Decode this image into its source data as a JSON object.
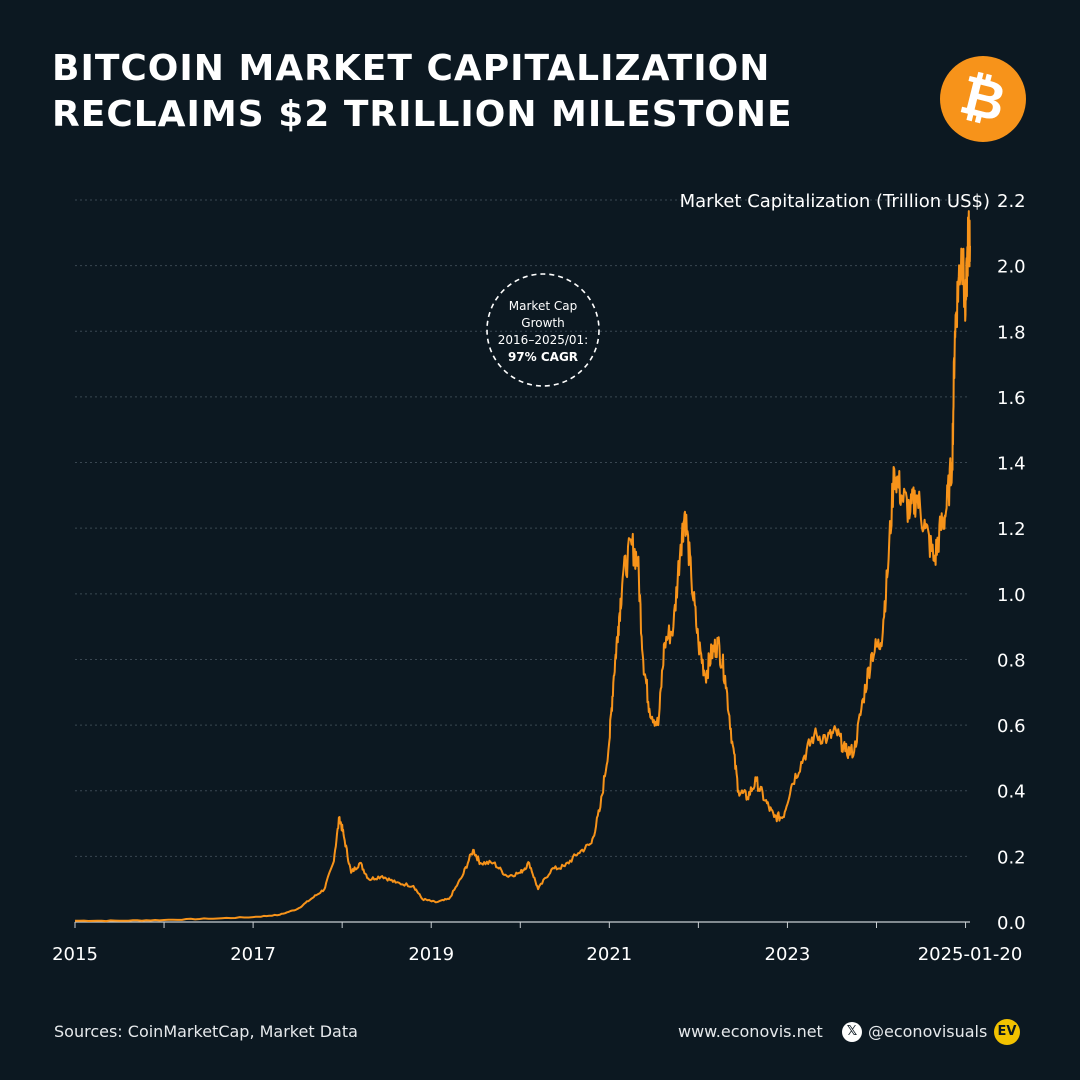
{
  "header": {
    "title_line1": "BITCOIN MARKET CAPITALIZATION",
    "title_line2": "RECLAIMS $2 TRILLION MILESTONE",
    "logo_symbol": "₿",
    "logo_icon": "bitcoin-logo-icon"
  },
  "annotation": {
    "line1": "Market Cap",
    "line2": "Growth",
    "line3": "2016–2025/01:",
    "line4": "97% CAGR"
  },
  "footer": {
    "sources": "Sources: CoinMarketCap, Market Data",
    "website": "www.econovis.net",
    "x_icon": "x-logo-icon",
    "x_glyph": "𝕏",
    "handle": "@econovisuals",
    "brand_icon": "econovis-logo-icon",
    "brand_text": "EV"
  },
  "colors": {
    "background": "#0c1821",
    "line": "#f7931a",
    "grid": "#3a4752",
    "text": "#ffffff",
    "muted": "#c8cdd2"
  },
  "chart_data": {
    "type": "line",
    "title": "BITCOIN MARKET CAPITALIZATION RECLAIMS $2 TRILLION MILESTONE",
    "ylabel": "Market Capitalization (Trillion US$)",
    "xlabel": "",
    "ylim": [
      0,
      2.2
    ],
    "xlim": [
      2015.0,
      2025.05
    ],
    "yticks": [
      "0.0",
      "0.2",
      "0.4",
      "0.6",
      "0.8",
      "1.0",
      "1.2",
      "1.4",
      "1.6",
      "1.8",
      "2.0",
      "2.2"
    ],
    "xticks": [
      {
        "x": 2015.0,
        "label": "2015"
      },
      {
        "x": 2017.0,
        "label": "2017"
      },
      {
        "x": 2019.0,
        "label": "2019"
      },
      {
        "x": 2021.0,
        "label": "2021"
      },
      {
        "x": 2023.0,
        "label": "2023"
      },
      {
        "x": 2025.05,
        "label": "2025-01-20"
      }
    ],
    "grid": true,
    "legend": "none",
    "series": [
      {
        "name": "Bitcoin Market Cap",
        "points": [
          [
            2015.0,
            0.004
          ],
          [
            2015.5,
            0.004
          ],
          [
            2016.0,
            0.006
          ],
          [
            2016.5,
            0.01
          ],
          [
            2017.0,
            0.015
          ],
          [
            2017.3,
            0.022
          ],
          [
            2017.5,
            0.04
          ],
          [
            2017.65,
            0.07
          ],
          [
            2017.8,
            0.1
          ],
          [
            2017.9,
            0.18
          ],
          [
            2017.97,
            0.32
          ],
          [
            2018.02,
            0.26
          ],
          [
            2018.1,
            0.15
          ],
          [
            2018.2,
            0.18
          ],
          [
            2018.3,
            0.13
          ],
          [
            2018.45,
            0.14
          ],
          [
            2018.6,
            0.12
          ],
          [
            2018.8,
            0.11
          ],
          [
            2018.9,
            0.07
          ],
          [
            2019.05,
            0.06
          ],
          [
            2019.2,
            0.07
          ],
          [
            2019.35,
            0.14
          ],
          [
            2019.47,
            0.22
          ],
          [
            2019.55,
            0.18
          ],
          [
            2019.7,
            0.18
          ],
          [
            2019.85,
            0.14
          ],
          [
            2020.0,
            0.15
          ],
          [
            2020.1,
            0.18
          ],
          [
            2020.2,
            0.1
          ],
          [
            2020.35,
            0.16
          ],
          [
            2020.5,
            0.17
          ],
          [
            2020.65,
            0.21
          ],
          [
            2020.8,
            0.24
          ],
          [
            2020.9,
            0.35
          ],
          [
            2021.0,
            0.55
          ],
          [
            2021.05,
            0.75
          ],
          [
            2021.1,
            0.9
          ],
          [
            2021.15,
            1.05
          ],
          [
            2021.25,
            1.15
          ],
          [
            2021.32,
            1.1
          ],
          [
            2021.38,
            0.8
          ],
          [
            2021.45,
            0.65
          ],
          [
            2021.55,
            0.6
          ],
          [
            2021.62,
            0.85
          ],
          [
            2021.72,
            0.9
          ],
          [
            2021.8,
            1.15
          ],
          [
            2021.85,
            1.25
          ],
          [
            2021.92,
            1.05
          ],
          [
            2022.0,
            0.85
          ],
          [
            2022.08,
            0.75
          ],
          [
            2022.15,
            0.82
          ],
          [
            2022.22,
            0.85
          ],
          [
            2022.3,
            0.75
          ],
          [
            2022.38,
            0.55
          ],
          [
            2022.45,
            0.4
          ],
          [
            2022.55,
            0.38
          ],
          [
            2022.65,
            0.43
          ],
          [
            2022.75,
            0.37
          ],
          [
            2022.85,
            0.32
          ],
          [
            2022.95,
            0.32
          ],
          [
            2023.05,
            0.42
          ],
          [
            2023.18,
            0.5
          ],
          [
            2023.3,
            0.57
          ],
          [
            2023.45,
            0.56
          ],
          [
            2023.55,
            0.58
          ],
          [
            2023.65,
            0.52
          ],
          [
            2023.75,
            0.52
          ],
          [
            2023.85,
            0.68
          ],
          [
            2023.95,
            0.82
          ],
          [
            2024.05,
            0.85
          ],
          [
            2024.12,
            1.05
          ],
          [
            2024.2,
            1.38
          ],
          [
            2024.28,
            1.3
          ],
          [
            2024.38,
            1.25
          ],
          [
            2024.45,
            1.3
          ],
          [
            2024.55,
            1.2
          ],
          [
            2024.65,
            1.1
          ],
          [
            2024.72,
            1.2
          ],
          [
            2024.78,
            1.25
          ],
          [
            2024.85,
            1.4
          ],
          [
            2024.88,
            1.8
          ],
          [
            2024.92,
            1.95
          ],
          [
            2024.96,
            2.05
          ],
          [
            2025.0,
            1.85
          ],
          [
            2025.03,
            2.1
          ],
          [
            2025.05,
            2.06
          ]
        ]
      }
    ]
  }
}
